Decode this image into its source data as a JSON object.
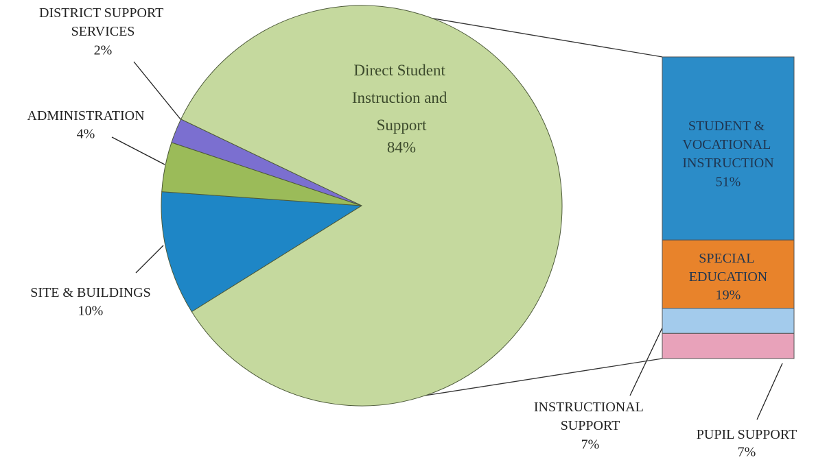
{
  "chart_data": [
    {
      "type": "pie",
      "categories": [
        "SITE & BUILDINGS",
        "ADMINISTRATION",
        "DISTRICT SUPPORT SERVICES",
        "Direct Student Instruction and Support"
      ],
      "values": [
        10,
        4,
        2,
        84
      ],
      "value_labels": [
        "10%",
        "4%",
        "2%",
        "84%"
      ],
      "colors": [
        "#1e86c6",
        "#9bbb59",
        "#7b6fd0",
        "#c5d99e"
      ]
    },
    {
      "type": "bar",
      "categories": [
        "STUDENT & VOCATIONAL INSTRUCTION",
        "SPECIAL EDUCATION",
        "INSTRUCTIONAL SUPPORT",
        "PUPIL SUPPORT"
      ],
      "values": [
        51,
        19,
        7,
        7
      ],
      "value_labels": [
        "51%",
        "19%",
        "7%",
        "7%"
      ],
      "colors": [
        "#2b8cc8",
        "#e8832b",
        "#a3cbec",
        "#e8a2ba"
      ]
    }
  ]
}
